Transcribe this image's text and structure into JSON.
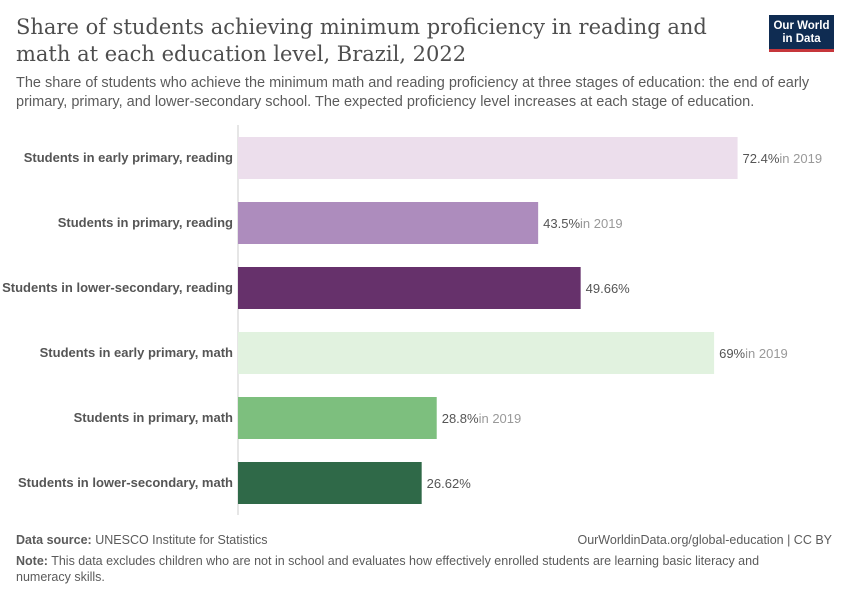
{
  "header": {
    "title": "Share of students achieving minimum proficiency in reading and math at each education level, Brazil, 2022",
    "subtitle": "The share of students who achieve the minimum math and reading proficiency at three stages of education: the end of early primary, primary, and lower-secondary school. The expected proficiency level increases at each stage of education.",
    "logo": "Our World in Data"
  },
  "chart_data": {
    "type": "bar",
    "orientation": "horizontal",
    "xlim": [
      0,
      100
    ],
    "unit": "%",
    "categories": [
      "Students in early primary, reading",
      "Students in primary, reading",
      "Students in lower-secondary, reading",
      "Students in early primary, math",
      "Students in primary, math",
      "Students in lower-secondary, math"
    ],
    "values": [
      72.4,
      43.5,
      49.66,
      69,
      28.8,
      26.62
    ],
    "labels": [
      "72.4%",
      "43.5%",
      "49.66%",
      "69%",
      "28.8%",
      "26.62%"
    ],
    "annotations": [
      "in 2019",
      "in 2019",
      "",
      "in 2019",
      "in 2019",
      ""
    ],
    "colors": [
      "#ecdeec",
      "#ad8cbd",
      "#66316b",
      "#e1f2df",
      "#7dbf7e",
      "#2f6948"
    ]
  },
  "footer": {
    "source_label": "Data source:",
    "source": "UNESCO Institute for Statistics",
    "url": "OurWorldinData.org/global-education | CC BY",
    "note_label": "Note:",
    "note": "This data excludes children who are not in school and evaluates how effectively enrolled students are learning basic literacy and numeracy skills."
  }
}
